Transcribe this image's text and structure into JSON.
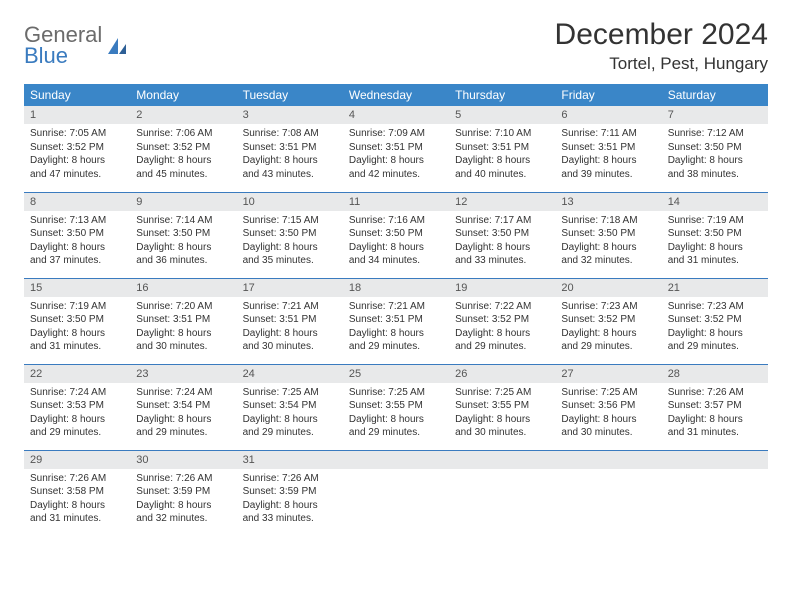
{
  "logo": {
    "line1": "General",
    "line2": "Blue",
    "icon_color": "#3a7bbf",
    "text_gray": "#6b6b6b"
  },
  "title": "December 2024",
  "location": "Tortel, Pest, Hungary",
  "colors": {
    "header_bg": "#3a86c8",
    "header_text": "#ffffff",
    "daynum_bg": "#e8e9ea",
    "border": "#3a7bbf",
    "body_text": "#333333"
  },
  "weekdays": [
    "Sunday",
    "Monday",
    "Tuesday",
    "Wednesday",
    "Thursday",
    "Friday",
    "Saturday"
  ],
  "weeks": [
    [
      {
        "n": "1",
        "sr": "Sunrise: 7:05 AM",
        "ss": "Sunset: 3:52 PM",
        "d1": "Daylight: 8 hours",
        "d2": "and 47 minutes."
      },
      {
        "n": "2",
        "sr": "Sunrise: 7:06 AM",
        "ss": "Sunset: 3:52 PM",
        "d1": "Daylight: 8 hours",
        "d2": "and 45 minutes."
      },
      {
        "n": "3",
        "sr": "Sunrise: 7:08 AM",
        "ss": "Sunset: 3:51 PM",
        "d1": "Daylight: 8 hours",
        "d2": "and 43 minutes."
      },
      {
        "n": "4",
        "sr": "Sunrise: 7:09 AM",
        "ss": "Sunset: 3:51 PM",
        "d1": "Daylight: 8 hours",
        "d2": "and 42 minutes."
      },
      {
        "n": "5",
        "sr": "Sunrise: 7:10 AM",
        "ss": "Sunset: 3:51 PM",
        "d1": "Daylight: 8 hours",
        "d2": "and 40 minutes."
      },
      {
        "n": "6",
        "sr": "Sunrise: 7:11 AM",
        "ss": "Sunset: 3:51 PM",
        "d1": "Daylight: 8 hours",
        "d2": "and 39 minutes."
      },
      {
        "n": "7",
        "sr": "Sunrise: 7:12 AM",
        "ss": "Sunset: 3:50 PM",
        "d1": "Daylight: 8 hours",
        "d2": "and 38 minutes."
      }
    ],
    [
      {
        "n": "8",
        "sr": "Sunrise: 7:13 AM",
        "ss": "Sunset: 3:50 PM",
        "d1": "Daylight: 8 hours",
        "d2": "and 37 minutes."
      },
      {
        "n": "9",
        "sr": "Sunrise: 7:14 AM",
        "ss": "Sunset: 3:50 PM",
        "d1": "Daylight: 8 hours",
        "d2": "and 36 minutes."
      },
      {
        "n": "10",
        "sr": "Sunrise: 7:15 AM",
        "ss": "Sunset: 3:50 PM",
        "d1": "Daylight: 8 hours",
        "d2": "and 35 minutes."
      },
      {
        "n": "11",
        "sr": "Sunrise: 7:16 AM",
        "ss": "Sunset: 3:50 PM",
        "d1": "Daylight: 8 hours",
        "d2": "and 34 minutes."
      },
      {
        "n": "12",
        "sr": "Sunrise: 7:17 AM",
        "ss": "Sunset: 3:50 PM",
        "d1": "Daylight: 8 hours",
        "d2": "and 33 minutes."
      },
      {
        "n": "13",
        "sr": "Sunrise: 7:18 AM",
        "ss": "Sunset: 3:50 PM",
        "d1": "Daylight: 8 hours",
        "d2": "and 32 minutes."
      },
      {
        "n": "14",
        "sr": "Sunrise: 7:19 AM",
        "ss": "Sunset: 3:50 PM",
        "d1": "Daylight: 8 hours",
        "d2": "and 31 minutes."
      }
    ],
    [
      {
        "n": "15",
        "sr": "Sunrise: 7:19 AM",
        "ss": "Sunset: 3:50 PM",
        "d1": "Daylight: 8 hours",
        "d2": "and 31 minutes."
      },
      {
        "n": "16",
        "sr": "Sunrise: 7:20 AM",
        "ss": "Sunset: 3:51 PM",
        "d1": "Daylight: 8 hours",
        "d2": "and 30 minutes."
      },
      {
        "n": "17",
        "sr": "Sunrise: 7:21 AM",
        "ss": "Sunset: 3:51 PM",
        "d1": "Daylight: 8 hours",
        "d2": "and 30 minutes."
      },
      {
        "n": "18",
        "sr": "Sunrise: 7:21 AM",
        "ss": "Sunset: 3:51 PM",
        "d1": "Daylight: 8 hours",
        "d2": "and 29 minutes."
      },
      {
        "n": "19",
        "sr": "Sunrise: 7:22 AM",
        "ss": "Sunset: 3:52 PM",
        "d1": "Daylight: 8 hours",
        "d2": "and 29 minutes."
      },
      {
        "n": "20",
        "sr": "Sunrise: 7:23 AM",
        "ss": "Sunset: 3:52 PM",
        "d1": "Daylight: 8 hours",
        "d2": "and 29 minutes."
      },
      {
        "n": "21",
        "sr": "Sunrise: 7:23 AM",
        "ss": "Sunset: 3:52 PM",
        "d1": "Daylight: 8 hours",
        "d2": "and 29 minutes."
      }
    ],
    [
      {
        "n": "22",
        "sr": "Sunrise: 7:24 AM",
        "ss": "Sunset: 3:53 PM",
        "d1": "Daylight: 8 hours",
        "d2": "and 29 minutes."
      },
      {
        "n": "23",
        "sr": "Sunrise: 7:24 AM",
        "ss": "Sunset: 3:54 PM",
        "d1": "Daylight: 8 hours",
        "d2": "and 29 minutes."
      },
      {
        "n": "24",
        "sr": "Sunrise: 7:25 AM",
        "ss": "Sunset: 3:54 PM",
        "d1": "Daylight: 8 hours",
        "d2": "and 29 minutes."
      },
      {
        "n": "25",
        "sr": "Sunrise: 7:25 AM",
        "ss": "Sunset: 3:55 PM",
        "d1": "Daylight: 8 hours",
        "d2": "and 29 minutes."
      },
      {
        "n": "26",
        "sr": "Sunrise: 7:25 AM",
        "ss": "Sunset: 3:55 PM",
        "d1": "Daylight: 8 hours",
        "d2": "and 30 minutes."
      },
      {
        "n": "27",
        "sr": "Sunrise: 7:25 AM",
        "ss": "Sunset: 3:56 PM",
        "d1": "Daylight: 8 hours",
        "d2": "and 30 minutes."
      },
      {
        "n": "28",
        "sr": "Sunrise: 7:26 AM",
        "ss": "Sunset: 3:57 PM",
        "d1": "Daylight: 8 hours",
        "d2": "and 31 minutes."
      }
    ],
    [
      {
        "n": "29",
        "sr": "Sunrise: 7:26 AM",
        "ss": "Sunset: 3:58 PM",
        "d1": "Daylight: 8 hours",
        "d2": "and 31 minutes."
      },
      {
        "n": "30",
        "sr": "Sunrise: 7:26 AM",
        "ss": "Sunset: 3:59 PM",
        "d1": "Daylight: 8 hours",
        "d2": "and 32 minutes."
      },
      {
        "n": "31",
        "sr": "Sunrise: 7:26 AM",
        "ss": "Sunset: 3:59 PM",
        "d1": "Daylight: 8 hours",
        "d2": "and 33 minutes."
      },
      {
        "empty": true
      },
      {
        "empty": true
      },
      {
        "empty": true
      },
      {
        "empty": true
      }
    ]
  ]
}
